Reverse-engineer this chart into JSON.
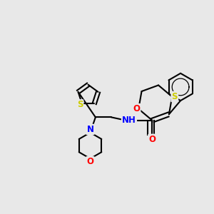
{
  "background_color": "#e8e8e8",
  "bond_color": "#000000",
  "atom_colors": {
    "S": "#cccc00",
    "O": "#ff0000",
    "N": "#0000ff",
    "C": "#000000",
    "H": "#000000"
  },
  "figsize": [
    3.0,
    3.0
  ],
  "dpi": 100,
  "xlim": [
    0,
    10
  ],
  "ylim": [
    0,
    10
  ]
}
